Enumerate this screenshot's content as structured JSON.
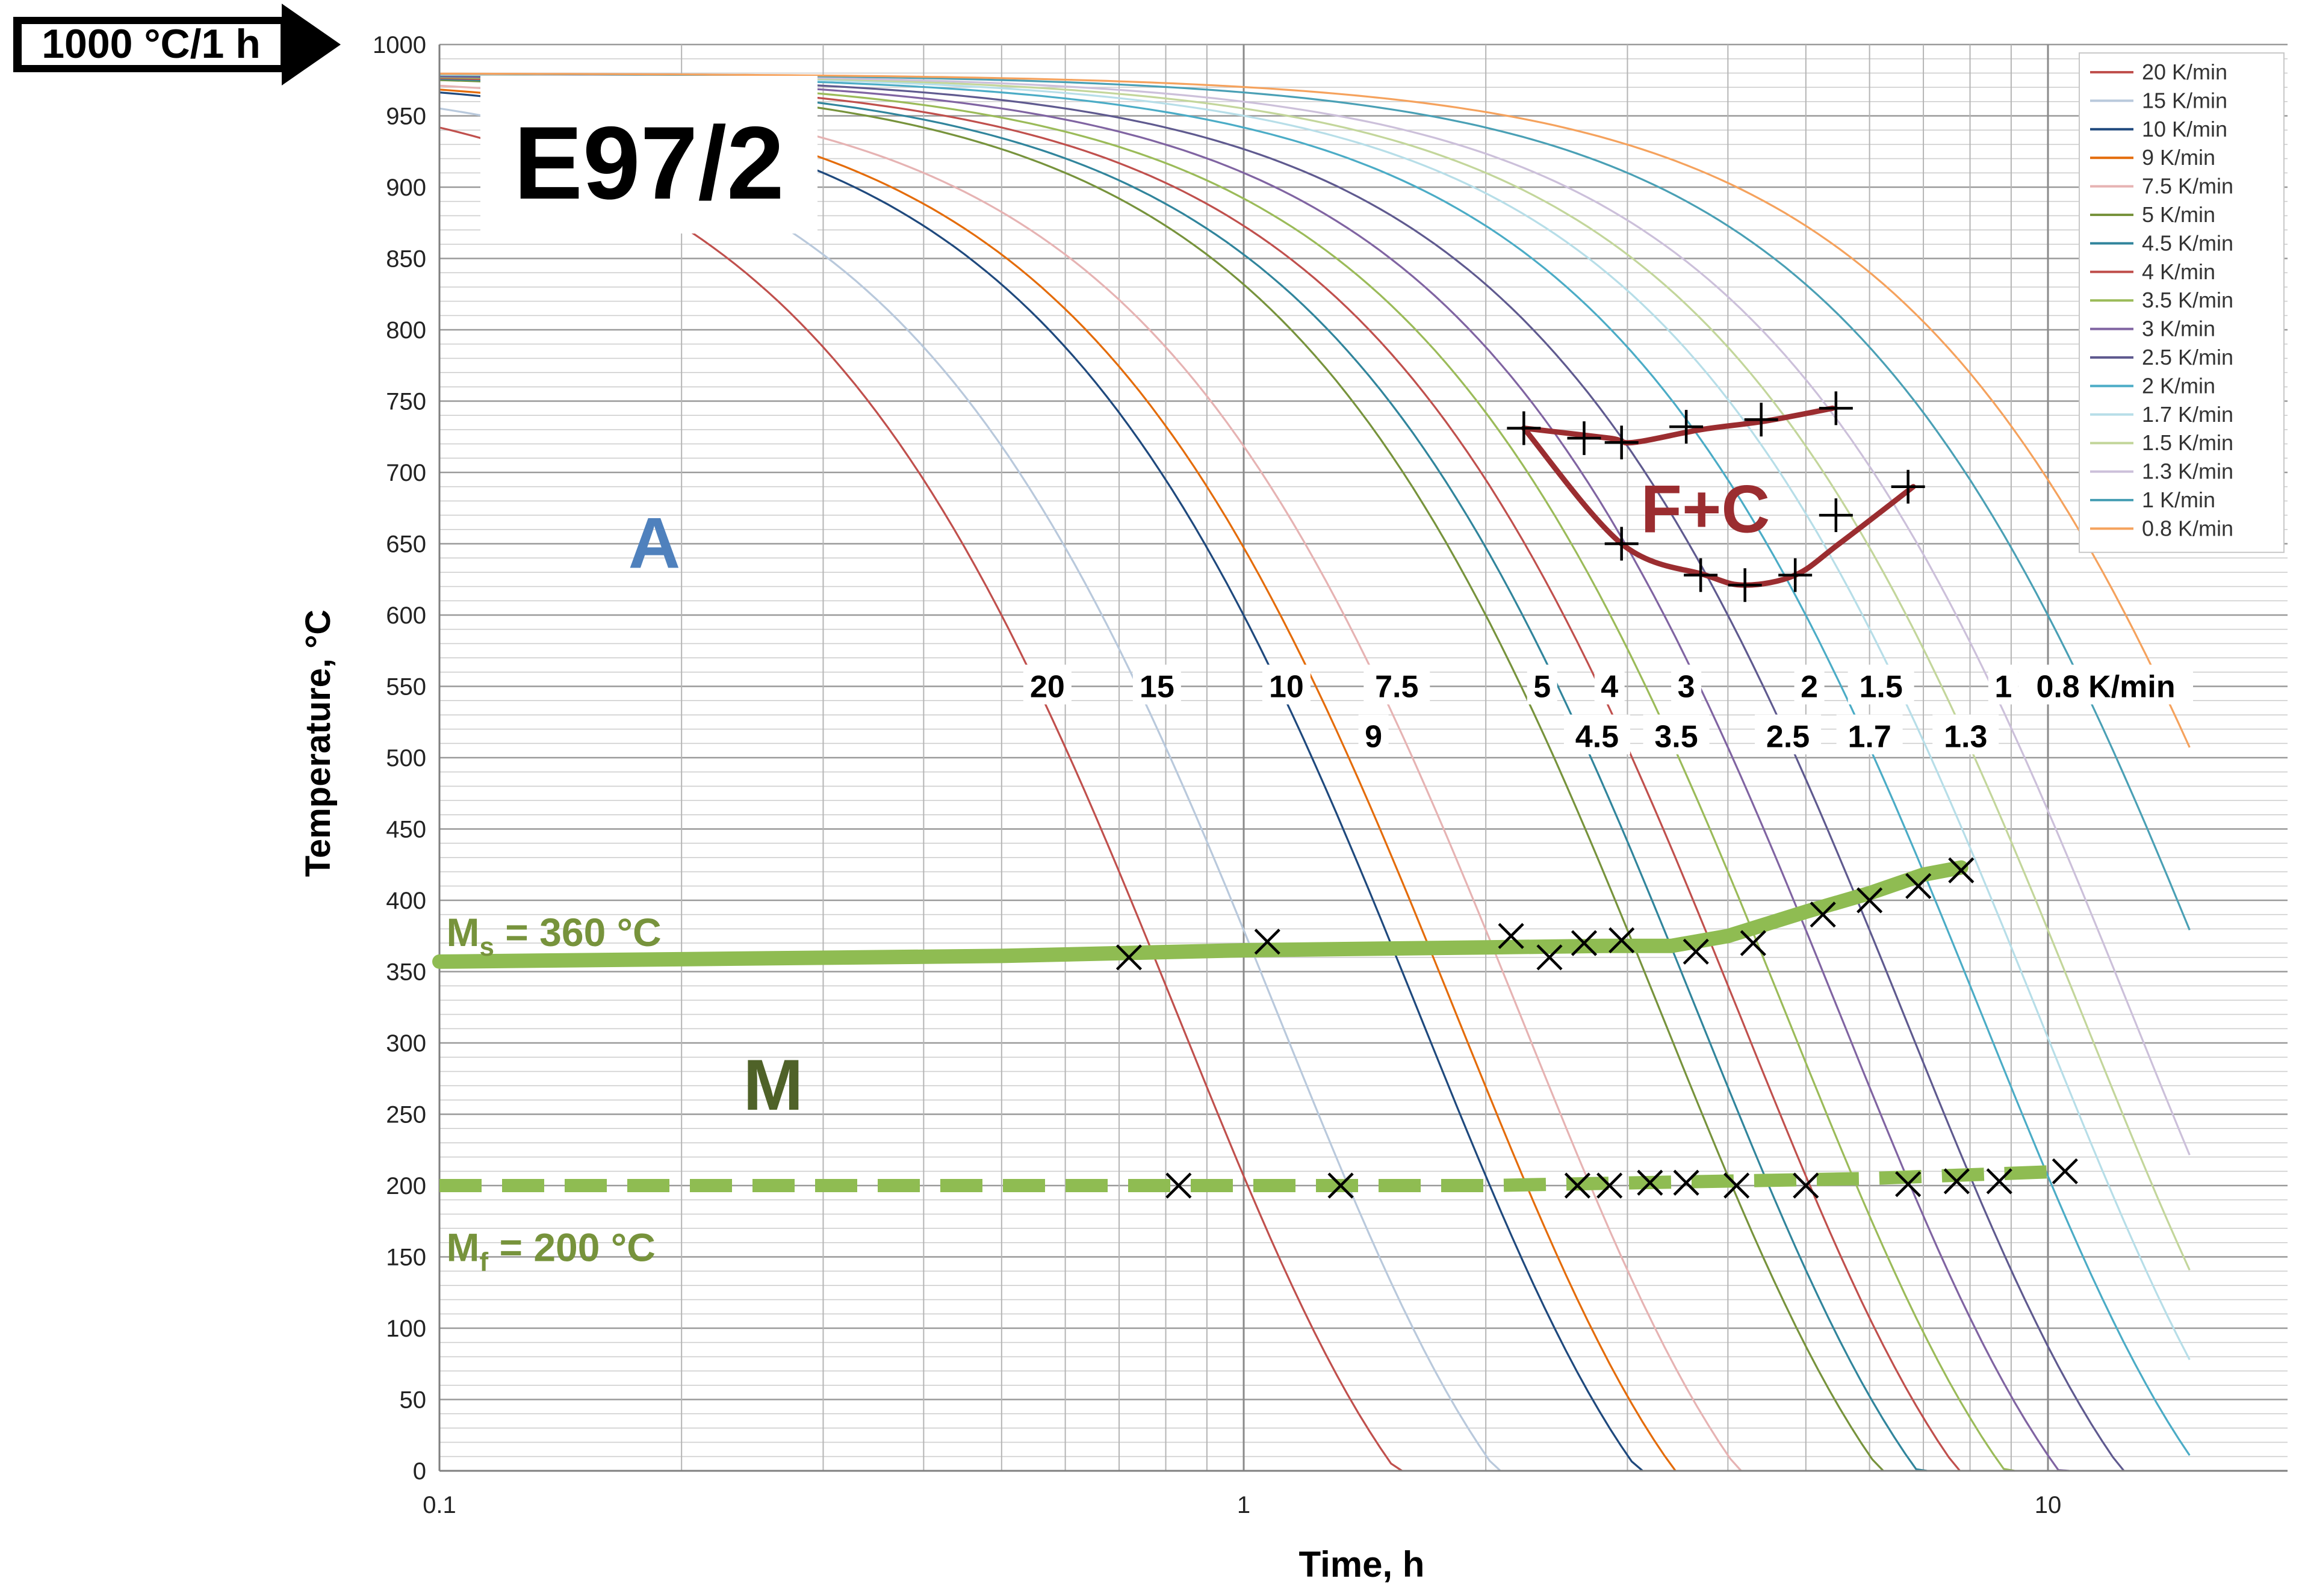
{
  "chart_data": {
    "type": "line",
    "title_box": "1000 °C/1 h",
    "sample_label": "E97/2",
    "xlabel": "Time, h",
    "ylabel": "Temperature, °C",
    "x_scale": "log",
    "xlim": [
      0.1,
      15
    ],
    "ylim": [
      0,
      1000
    ],
    "x_ticks": [
      "0.1",
      "1",
      "10"
    ],
    "y_ticks": [
      "0",
      "50",
      "100",
      "150",
      "200",
      "250",
      "300",
      "350",
      "400",
      "450",
      "500",
      "550",
      "600",
      "650",
      "700",
      "750",
      "800",
      "850",
      "900",
      "950",
      "1000"
    ],
    "grid": true,
    "legend_position": "top-right",
    "series": [
      {
        "name": "20 K/min",
        "rate": 20,
        "color": "#c0504d"
      },
      {
        "name": "15 K/min",
        "rate": 15,
        "color": "#b9c9dc"
      },
      {
        "name": "10 K/min",
        "rate": 10,
        "color": "#1f497d"
      },
      {
        "name": "9 K/min",
        "rate": 9,
        "color": "#e46c0a"
      },
      {
        "name": "7.5 K/min",
        "rate": 7.5,
        "color": "#e6b3b3"
      },
      {
        "name": "5 K/min",
        "rate": 5,
        "color": "#77933c"
      },
      {
        "name": "4.5 K/min",
        "rate": 4.5,
        "color": "#31859c"
      },
      {
        "name": "4 K/min",
        "rate": 4,
        "color": "#c0504d"
      },
      {
        "name": "3.5 K/min",
        "rate": 3.5,
        "color": "#9bbb59"
      },
      {
        "name": "3 K/min",
        "rate": 3,
        "color": "#8064a2"
      },
      {
        "name": "2.5 K/min",
        "rate": 2.5,
        "color": "#5f5a8f"
      },
      {
        "name": "2 K/min",
        "rate": 2,
        "color": "#4bacc6"
      },
      {
        "name": "1.7 K/min",
        "rate": 1.7,
        "color": "#b7dee8"
      },
      {
        "name": "1.5 K/min",
        "rate": 1.5,
        "color": "#c3d69b"
      },
      {
        "name": "1.3 K/min",
        "rate": 1.3,
        "color": "#ccc0da"
      },
      {
        "name": "1 K/min",
        "rate": 1,
        "color": "#4aa0b5"
      },
      {
        "name": "0.8 K/min",
        "rate": 0.8,
        "color": "#f5a25d"
      }
    ],
    "curve_rate_labels": [
      {
        "text": "20",
        "t": 0.57,
        "T": 550
      },
      {
        "text": "15",
        "t": 0.78,
        "T": 550
      },
      {
        "text": "10",
        "t": 1.13,
        "T": 550
      },
      {
        "text": "7.5",
        "t": 1.55,
        "T": 550
      },
      {
        "text": "9",
        "t": 1.45,
        "T": 515
      },
      {
        "text": "5",
        "t": 2.35,
        "T": 550
      },
      {
        "text": "4",
        "t": 2.85,
        "T": 550
      },
      {
        "text": "4.5",
        "t": 2.75,
        "T": 515
      },
      {
        "text": "3",
        "t": 3.55,
        "T": 550
      },
      {
        "text": "3.5",
        "t": 3.45,
        "T": 515
      },
      {
        "text": "2",
        "t": 5.05,
        "T": 550
      },
      {
        "text": "2.5",
        "t": 4.75,
        "T": 515
      },
      {
        "text": "1.5",
        "t": 6.2,
        "T": 550
      },
      {
        "text": "1.7",
        "t": 6.0,
        "T": 515
      },
      {
        "text": "1",
        "t": 8.8,
        "T": 550
      },
      {
        "text": "1.3",
        "t": 7.9,
        "T": 515
      },
      {
        "text": "0.8 K/min",
        "t": 11.8,
        "T": 550
      }
    ],
    "phase_labels": [
      {
        "text": "A",
        "t": 0.185,
        "T": 650,
        "color": "#4f81bd"
      },
      {
        "text": "M",
        "t": 0.26,
        "T": 270,
        "color": "#4f6228"
      },
      {
        "text": "F+C",
        "t": 3.75,
        "T": 675,
        "color": "#9b2d30"
      }
    ],
    "Ms": {
      "label": "Ms = 360 °C",
      "label_main": "M",
      "label_sub": "s",
      "label_tail": " = 360 °C",
      "value": 360,
      "color": "#8fbc52",
      "points": [
        [
          0.1,
          357
        ],
        [
          0.5,
          361
        ],
        [
          1.0,
          365
        ],
        [
          2.0,
          367
        ],
        [
          2.8,
          368
        ],
        [
          3.4,
          368
        ],
        [
          4.0,
          375
        ],
        [
          5.0,
          392
        ],
        [
          6.0,
          405
        ],
        [
          7.0,
          418
        ],
        [
          7.8,
          423
        ]
      ],
      "markers": [
        [
          0.72,
          360
        ],
        [
          1.07,
          371
        ],
        [
          2.15,
          375
        ],
        [
          2.4,
          360
        ],
        [
          2.65,
          370
        ],
        [
          2.95,
          372
        ],
        [
          3.65,
          364
        ],
        [
          4.3,
          370
        ],
        [
          5.25,
          390
        ],
        [
          6.0,
          400
        ],
        [
          6.9,
          410
        ],
        [
          7.8,
          421
        ]
      ]
    },
    "Mf": {
      "label": "Mf = 200 °C",
      "label_main": "M",
      "label_sub": "f",
      "label_tail": " = 200 °C",
      "value": 200,
      "color": "#8fbc52",
      "points": [
        [
          0.1,
          200
        ],
        [
          2.0,
          200
        ],
        [
          6.0,
          205
        ],
        [
          10.5,
          210
        ]
      ],
      "markers": [
        [
          0.83,
          200
        ],
        [
          1.32,
          200
        ],
        [
          2.6,
          200
        ],
        [
          2.85,
          200
        ],
        [
          3.2,
          202
        ],
        [
          3.55,
          202
        ],
        [
          4.1,
          200
        ],
        [
          5.0,
          200
        ],
        [
          6.7,
          201
        ],
        [
          7.7,
          203
        ],
        [
          8.7,
          203
        ],
        [
          10.5,
          210
        ]
      ]
    },
    "fc_region": {
      "color": "#9b2d30",
      "upper": [
        [
          2.23,
          731
        ],
        [
          2.85,
          724
        ],
        [
          3.05,
          721
        ],
        [
          3.7,
          730
        ],
        [
          4.45,
          736
        ],
        [
          5.4,
          745
        ]
      ],
      "lower": [
        [
          2.23,
          731
        ],
        [
          2.95,
          650
        ],
        [
          3.75,
          628
        ],
        [
          4.2,
          621
        ],
        [
          4.85,
          628
        ],
        [
          5.5,
          650
        ],
        [
          6.8,
          690
        ]
      ],
      "markers": [
        [
          2.23,
          731
        ],
        [
          2.65,
          724
        ],
        [
          2.95,
          721
        ],
        [
          3.55,
          732
        ],
        [
          4.4,
          737
        ],
        [
          5.45,
          745
        ],
        [
          6.7,
          690
        ],
        [
          5.45,
          670
        ],
        [
          2.95,
          650
        ],
        [
          3.7,
          628
        ],
        [
          4.2,
          621
        ],
        [
          4.85,
          628
        ]
      ]
    }
  }
}
